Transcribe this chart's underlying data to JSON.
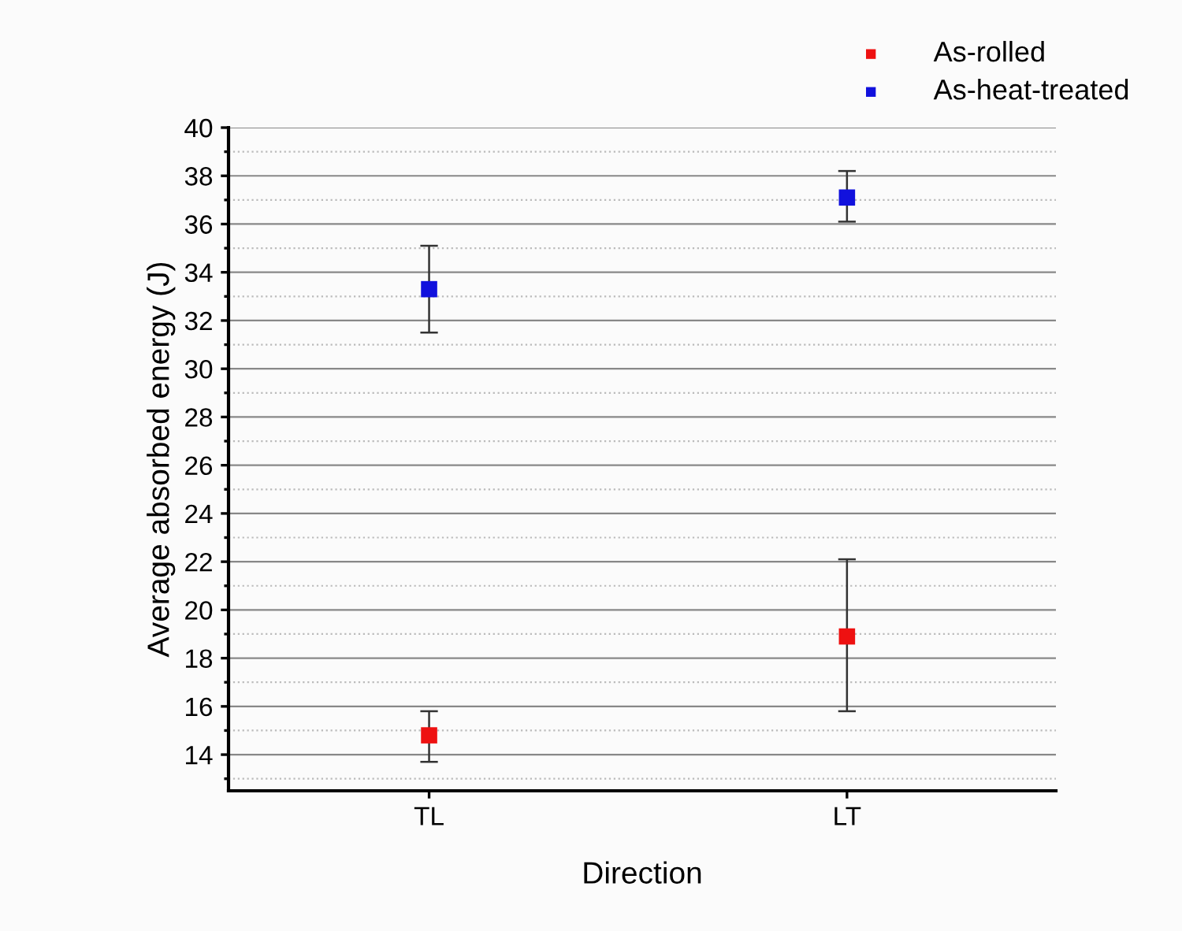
{
  "chart_data": {
    "type": "scatter",
    "xlabel": "Direction",
    "ylabel": "Average absorbed energy (J)",
    "categories": [
      "TL",
      "LT"
    ],
    "series": [
      {
        "name": "As-rolled",
        "color": "#ee1111",
        "values": [
          14.8,
          18.9
        ],
        "errors": [
          [
            13.7,
            15.8
          ],
          [
            15.8,
            22.1
          ]
        ]
      },
      {
        "name": "As-heat-treated",
        "color": "#1111dd",
        "values": [
          33.3,
          37.1
        ],
        "errors": [
          [
            31.5,
            35.1
          ],
          [
            36.1,
            38.2
          ]
        ]
      }
    ],
    "ylim": [
      12.5,
      40
    ],
    "yticks": [
      14,
      16,
      18,
      20,
      22,
      24,
      26,
      28,
      30,
      32,
      34,
      36,
      38,
      40
    ],
    "grid": "y",
    "legend": "top right",
    "marker": "square"
  }
}
